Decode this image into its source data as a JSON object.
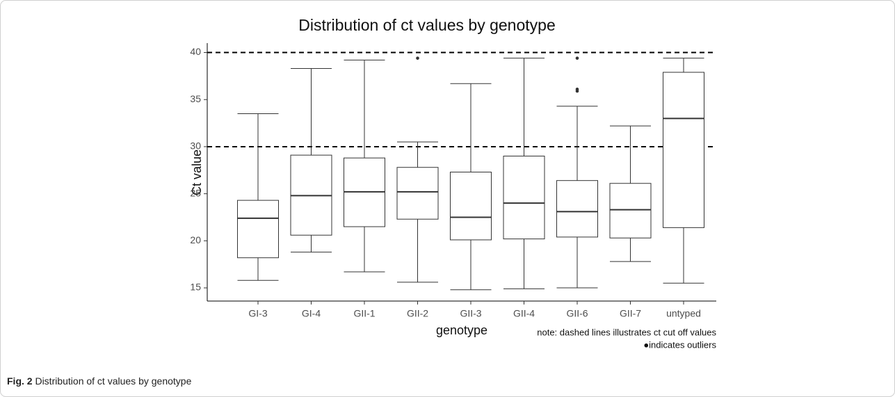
{
  "chart_data": {
    "type": "box",
    "title": "Distribution of ct values by genotype",
    "x_label": "genotype",
    "y_label": "Ct value",
    "categories": [
      "GI-3",
      "GI-4",
      "GII-1",
      "GII-2",
      "GII-3",
      "GII-4",
      "GII-6",
      "GII-7",
      "untyped"
    ],
    "boxes": [
      {
        "min": 15.8,
        "q1": 18.2,
        "median": 22.4,
        "q3": 24.3,
        "max": 33.5
      },
      {
        "min": 18.8,
        "q1": 20.6,
        "median": 24.8,
        "q3": 29.1,
        "max": 38.3
      },
      {
        "min": 16.7,
        "q1": 21.5,
        "median": 25.2,
        "q3": 28.8,
        "max": 39.2
      },
      {
        "min": 15.6,
        "q1": 22.3,
        "median": 25.2,
        "q3": 27.8,
        "max": 30.5,
        "outliers": [
          39.4
        ]
      },
      {
        "min": 14.8,
        "q1": 20.1,
        "median": 22.5,
        "q3": 27.3,
        "max": 36.7
      },
      {
        "min": 14.9,
        "q1": 20.2,
        "median": 24.0,
        "q3": 29.0,
        "max": 39.4
      },
      {
        "min": 15.0,
        "q1": 20.4,
        "median": 23.1,
        "q3": 26.4,
        "max": 34.3,
        "outliers": [
          35.9,
          36.1,
          39.4
        ]
      },
      {
        "min": 17.8,
        "q1": 20.3,
        "median": 23.3,
        "q3": 26.1,
        "max": 32.2
      },
      {
        "min": 15.5,
        "q1": 21.4,
        "median": 33.0,
        "q3": 37.9,
        "max": 39.4
      }
    ],
    "hlines": [
      40,
      30
    ],
    "ylim": [
      13.6,
      41.0
    ],
    "yticks": [
      15,
      20,
      25,
      30,
      35,
      40
    ],
    "color": "#333333",
    "notes": [
      "note: dashed lines illustrates ct cut off values",
      "●indicates outliers"
    ]
  },
  "caption": {
    "label": "Fig. 2",
    "text": "Distribution of ct values by genotype"
  }
}
